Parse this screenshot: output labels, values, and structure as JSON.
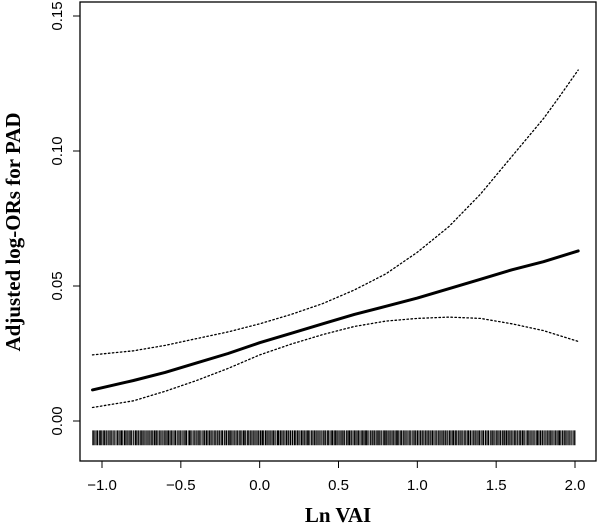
{
  "chart_data": {
    "type": "line",
    "title": "",
    "xlabel": "Ln VAI",
    "ylabel": "Adjusted log-ORs for PAD",
    "xlim": [
      -1.1,
      2.1
    ],
    "ylim": [
      -0.01,
      0.15
    ],
    "xticks": [
      -1.0,
      -0.5,
      0.0,
      0.5,
      1.0,
      1.5,
      2.0
    ],
    "xtick_labels": [
      "−1.0",
      "−0.5",
      "0.0",
      "0.5",
      "1.0",
      "1.5",
      "2.0"
    ],
    "yticks": [
      0.0,
      0.05,
      0.1,
      0.15
    ],
    "ytick_labels": [
      "0.00",
      "0.05",
      "0.10",
      "0.15"
    ],
    "grid": false,
    "legend": "none",
    "series": [
      {
        "role": "estimate",
        "style": "solid",
        "x": [
          -1.06,
          -0.8,
          -0.6,
          -0.4,
          -0.2,
          0.0,
          0.2,
          0.4,
          0.6,
          0.8,
          1.0,
          1.2,
          1.4,
          1.6,
          1.8,
          2.02
        ],
        "y": [
          0.0115,
          0.015,
          0.018,
          0.0215,
          0.025,
          0.029,
          0.0325,
          0.036,
          0.0395,
          0.0425,
          0.0455,
          0.049,
          0.0525,
          0.056,
          0.059,
          0.063
        ]
      },
      {
        "role": "upper 95% CI",
        "style": "dotted",
        "x": [
          -1.06,
          -0.8,
          -0.6,
          -0.4,
          -0.2,
          0.0,
          0.2,
          0.4,
          0.6,
          0.8,
          1.0,
          1.2,
          1.4,
          1.6,
          1.8,
          1.9,
          2.02
        ],
        "y": [
          0.0245,
          0.026,
          0.028,
          0.0305,
          0.033,
          0.036,
          0.0395,
          0.0435,
          0.0485,
          0.0545,
          0.0625,
          0.072,
          0.084,
          0.098,
          0.112,
          0.12,
          0.13
        ]
      },
      {
        "role": "lower 95% CI",
        "style": "dotted",
        "x": [
          -1.06,
          -0.8,
          -0.6,
          -0.4,
          -0.2,
          0.0,
          0.2,
          0.4,
          0.6,
          0.8,
          1.0,
          1.2,
          1.4,
          1.6,
          1.8,
          2.02
        ],
        "y": [
          0.005,
          0.0075,
          0.011,
          0.015,
          0.0195,
          0.0245,
          0.0285,
          0.032,
          0.035,
          0.037,
          0.038,
          0.0385,
          0.038,
          0.036,
          0.0335,
          0.0295
        ]
      }
    ],
    "rug": {
      "y_range": [
        -0.009,
        -0.0035
      ],
      "x_min": -1.06,
      "x_max": 2.0,
      "step": 0.006,
      "description": "dense vertical tick marks along the bottom (data rug)"
    }
  }
}
